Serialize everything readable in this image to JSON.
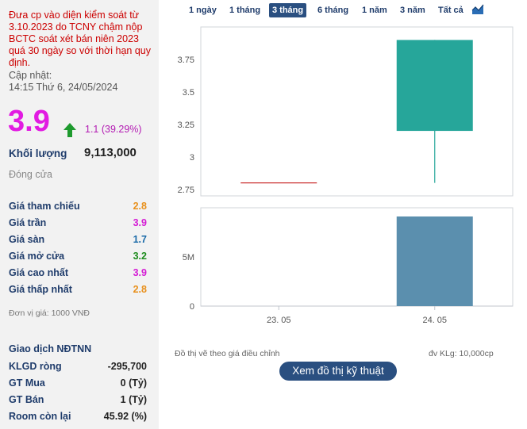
{
  "notice": "Đưa cp vào diện kiểm soát từ 3.10.2023 do TCNY chậm nộp BCTC soát xét bán niên 2023 quá 30 ngày so với thời hạn quy định.",
  "updated": {
    "label": "Cập nhật:",
    "time": "14:15 Thứ 6, 24/05/2024"
  },
  "price": {
    "value": "3.9",
    "change": "1.1 (39.29%)"
  },
  "volume": {
    "label": "Khối lượng",
    "value": "9,113,000"
  },
  "status": "Đóng cửa",
  "stats": [
    {
      "label": "Giá tham chiếu",
      "value": "2.8",
      "color": "#e8901c"
    },
    {
      "label": "Giá trần",
      "value": "3.9",
      "color": "#d41bd4"
    },
    {
      "label": "Giá sàn",
      "value": "1.7",
      "color": "#1a6aa8"
    },
    {
      "label": "Giá mở cửa",
      "value": "3.2",
      "color": "#1e8c1e"
    },
    {
      "label": "Giá cao nhất",
      "value": "3.9",
      "color": "#d41bd4"
    },
    {
      "label": "Giá thấp nhất",
      "value": "2.8",
      "color": "#e8901c"
    }
  ],
  "unit_note": "Đơn vị giá: 1000 VNĐ",
  "foreign": {
    "title": "Giao dịch NĐTNN",
    "rows": [
      {
        "label": "KLGD ròng",
        "value": "-295,700"
      },
      {
        "label": "GT Mua",
        "value": "0 (Tỷ)"
      },
      {
        "label": "GT Bán",
        "value": "1 (Tỷ)"
      },
      {
        "label": "Room còn lại",
        "value": "45.92 (%)"
      }
    ]
  },
  "range_tabs": [
    {
      "label": "1 ngày",
      "active": false
    },
    {
      "label": "1 tháng",
      "active": false
    },
    {
      "label": "3 tháng",
      "active": true
    },
    {
      "label": "6 tháng",
      "active": false
    },
    {
      "label": "1 năm",
      "active": false
    },
    {
      "label": "3 năm",
      "active": false
    },
    {
      "label": "Tất cả",
      "active": false
    }
  ],
  "chart_icon": "area-chart-icon",
  "chart_data": {
    "type": "candlestick",
    "price_axis": {
      "ticks": [
        "2.75",
        "3",
        "3.25",
        "3.5",
        "3.75"
      ],
      "range": [
        2.7,
        4.0
      ]
    },
    "volume_axis": {
      "ticks": [
        "0",
        "5M"
      ],
      "range": [
        0,
        10000000
      ]
    },
    "x_ticks": [
      "23. 05",
      "24. 05"
    ],
    "candles": [
      {
        "date": "23. 05",
        "open": 2.8,
        "high": 2.8,
        "low": 2.8,
        "close": 2.8,
        "volume": 0
      },
      {
        "date": "24. 05",
        "open": 3.2,
        "high": 3.9,
        "low": 2.8,
        "close": 3.9,
        "volume": 9113000
      }
    ],
    "colors": {
      "up": "#26a69a",
      "flat": "#cc3333",
      "volume": "#5b8fae"
    }
  },
  "footnote_left": "Đồ thị vẽ theo giá điều chỉnh",
  "footnote_right": "đv KLg: 10,000cp",
  "tech_button": "Xem đồ thị kỹ thuật"
}
